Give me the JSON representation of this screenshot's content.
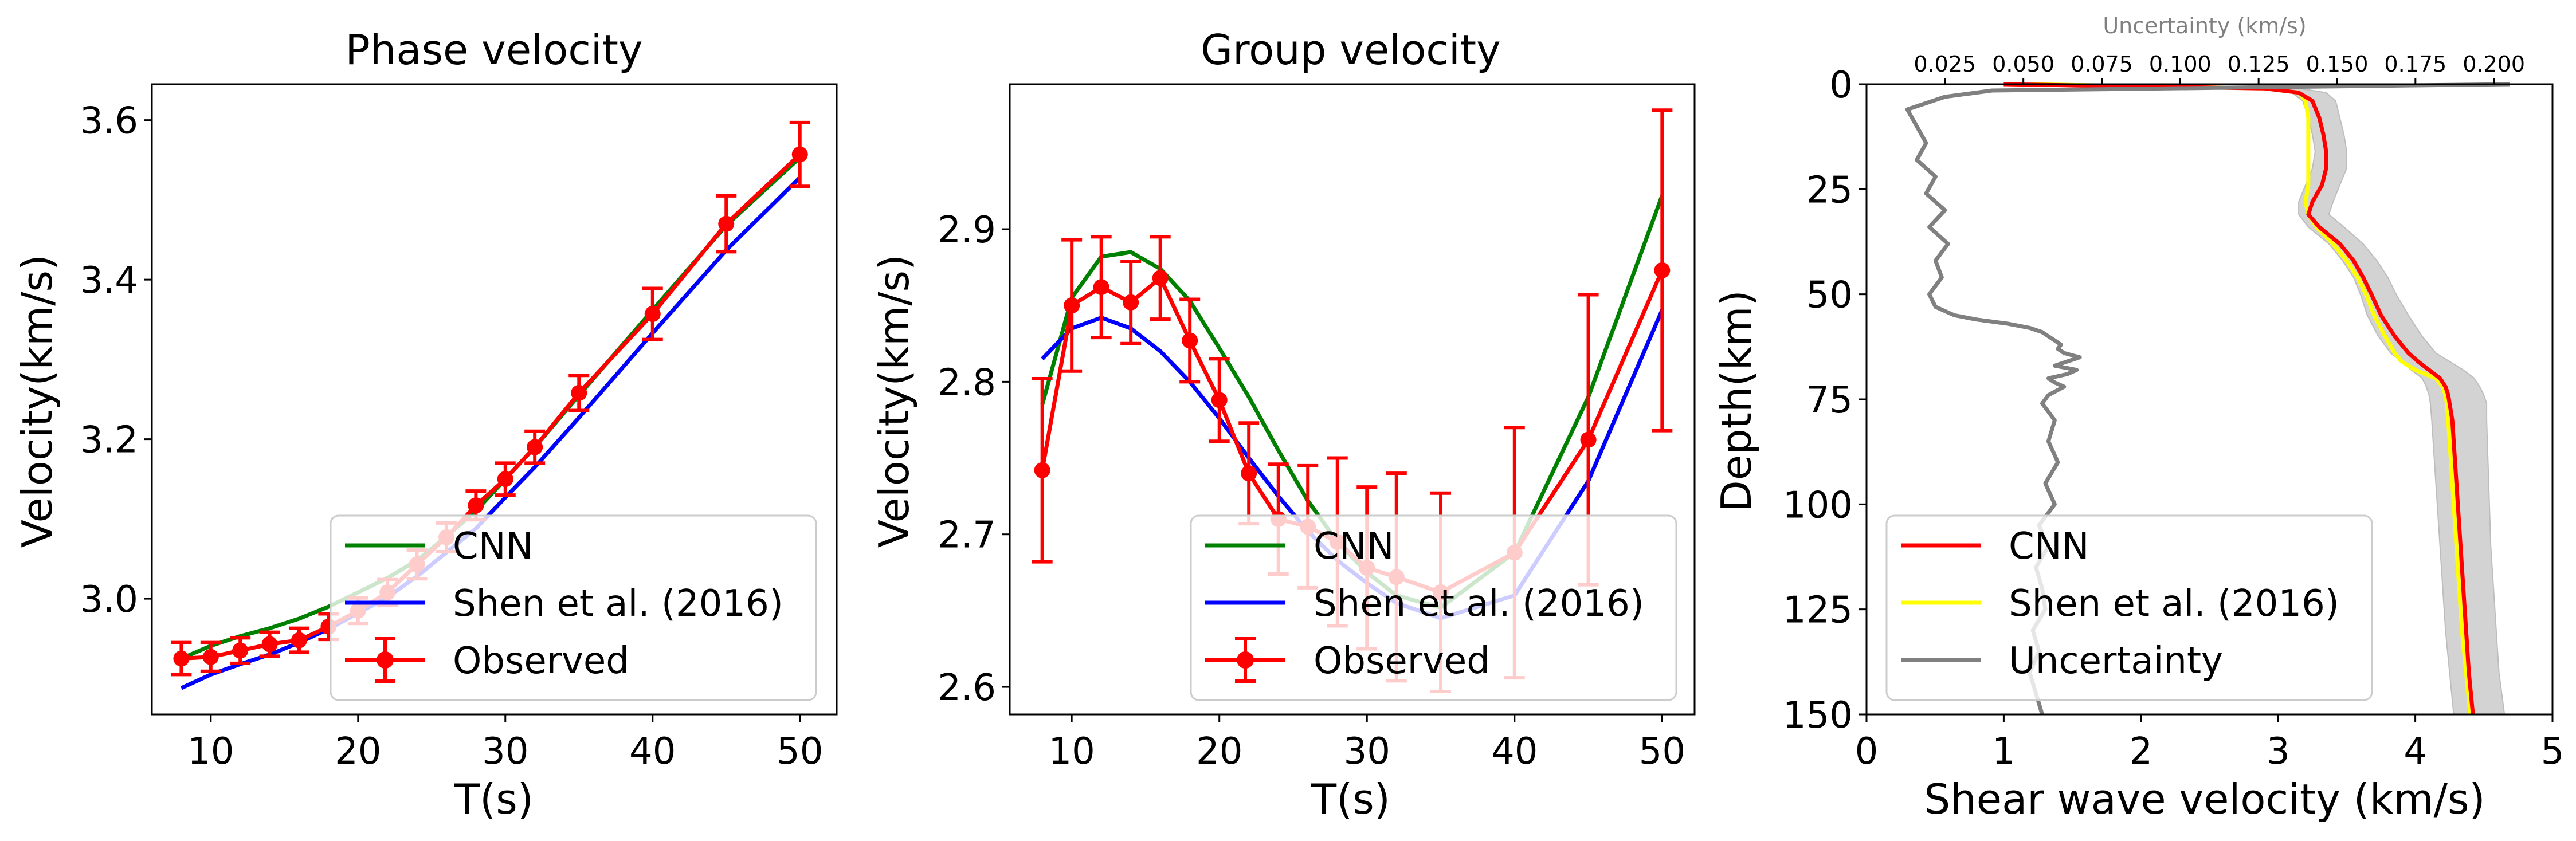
{
  "figure": {
    "colors": {
      "cnn": "#008000",
      "shen": "#0000ff",
      "observed": "#ff0000",
      "shen_profile": "#ffff00",
      "uncertainty": "#808080",
      "band": "#d3d3d3"
    }
  },
  "chart_data": [
    {
      "type": "line",
      "title": "Phase velocity",
      "xlabel": "T(s)",
      "ylabel": "Velocity(km/s)",
      "xlim": [
        6.0,
        52.5
      ],
      "ylim": [
        2.855,
        3.645
      ],
      "xticks": [
        10,
        20,
        30,
        40,
        50
      ],
      "yticks": [
        3.0,
        3.2,
        3.4,
        3.6
      ],
      "ytick_labels": [
        "3.0",
        "3.2",
        "3.4",
        "3.6"
      ],
      "legend_position": "lower-right",
      "legend": [
        "CNN",
        "Shen et al. (2016)",
        "Observed"
      ],
      "x": [
        8,
        10,
        12,
        14,
        16,
        18,
        20,
        22,
        24,
        26,
        28,
        30,
        32,
        35,
        40,
        45,
        50
      ],
      "series": [
        {
          "name": "CNN",
          "values": [
            2.925,
            2.941,
            2.953,
            2.963,
            2.975,
            2.99,
            3.008,
            3.026,
            3.048,
            3.078,
            3.11,
            3.15,
            3.19,
            3.255,
            3.362,
            3.468,
            3.553
          ]
        },
        {
          "name": "Shen et al. (2016)",
          "values": [
            2.888,
            2.905,
            2.918,
            2.93,
            2.945,
            2.962,
            2.982,
            3.002,
            3.028,
            3.058,
            3.088,
            3.127,
            3.165,
            3.227,
            3.333,
            3.437,
            3.528
          ]
        },
        {
          "name": "Observed",
          "values": [
            2.925,
            2.927,
            2.935,
            2.943,
            2.948,
            2.965,
            2.985,
            3.008,
            3.043,
            3.077,
            3.117,
            3.15,
            3.19,
            3.258,
            3.357,
            3.47,
            3.557
          ],
          "errors": [
            0.02,
            0.018,
            0.016,
            0.015,
            0.015,
            0.016,
            0.016,
            0.016,
            0.018,
            0.018,
            0.018,
            0.02,
            0.02,
            0.022,
            0.032,
            0.035,
            0.04
          ]
        }
      ]
    },
    {
      "type": "line",
      "title": "Group velocity",
      "xlabel": "T(s)",
      "ylabel": "Velocity(km/s)",
      "xlim": [
        5.8,
        52.2
      ],
      "ylim": [
        2.582,
        2.995
      ],
      "xticks": [
        10,
        20,
        30,
        40,
        50
      ],
      "yticks": [
        2.6,
        2.7,
        2.8,
        2.9
      ],
      "ytick_labels": [
        "2.6",
        "2.7",
        "2.8",
        "2.9"
      ],
      "legend_position": "lower-right",
      "legend": [
        "CNN",
        "Shen et al. (2016)",
        "Observed"
      ],
      "x": [
        8,
        10,
        12,
        14,
        16,
        18,
        20,
        22,
        24,
        26,
        28,
        30,
        32,
        35,
        40,
        45,
        50
      ],
      "series": [
        {
          "name": "CNN",
          "values": [
            2.785,
            2.855,
            2.882,
            2.885,
            2.874,
            2.853,
            2.822,
            2.79,
            2.755,
            2.722,
            2.695,
            2.675,
            2.66,
            2.652,
            2.688,
            2.79,
            2.922
          ]
        },
        {
          "name": "Shen et al. (2016)",
          "values": [
            2.815,
            2.835,
            2.842,
            2.835,
            2.82,
            2.8,
            2.776,
            2.75,
            2.725,
            2.702,
            2.683,
            2.668,
            2.655,
            2.645,
            2.66,
            2.735,
            2.847
          ]
        },
        {
          "name": "Observed",
          "values": [
            2.742,
            2.85,
            2.862,
            2.852,
            2.868,
            2.827,
            2.788,
            2.74,
            2.71,
            2.705,
            2.695,
            2.678,
            2.672,
            2.662,
            2.688,
            2.762,
            2.873
          ],
          "errors": [
            0.06,
            0.043,
            0.033,
            0.027,
            0.027,
            0.027,
            0.027,
            0.033,
            0.036,
            0.04,
            0.055,
            0.053,
            0.068,
            0.065,
            0.082,
            0.095,
            0.105
          ]
        }
      ]
    },
    {
      "type": "line",
      "xlabel": "Shear wave velocity (km/s)",
      "ylabel": "Depth(km)",
      "top_xlabel": "Uncertainty (km/s)",
      "xlim": [
        0,
        5
      ],
      "ylim": [
        150,
        0
      ],
      "top_xlim": [
        0.0,
        0.2187
      ],
      "xticks": [
        0,
        1,
        2,
        3,
        4,
        5
      ],
      "yticks": [
        0,
        25,
        50,
        75,
        100,
        125,
        150
      ],
      "top_xticks": [
        0.025,
        0.05,
        0.075,
        0.1,
        0.125,
        0.15,
        0.175,
        0.2
      ],
      "top_xtick_labels": [
        "0.025",
        "0.050",
        "0.075",
        "0.100",
        "0.125",
        "0.150",
        "0.175",
        "0.200"
      ],
      "legend_position": "lower-left",
      "legend": [
        "CNN",
        "Shen et al. (2016)",
        "Uncertainty"
      ],
      "depth": [
        0,
        1,
        2,
        4,
        8,
        12,
        16,
        20,
        24,
        28,
        31,
        34,
        38,
        42,
        46,
        50,
        55,
        60,
        64,
        66,
        68,
        70,
        72,
        74,
        76,
        80,
        90,
        100,
        110,
        120,
        130,
        140,
        150
      ],
      "series": [
        {
          "name": "CNN",
          "values": [
            1.0,
            2.9,
            3.15,
            3.25,
            3.3,
            3.33,
            3.35,
            3.35,
            3.32,
            3.25,
            3.22,
            3.3,
            3.45,
            3.55,
            3.62,
            3.68,
            3.75,
            3.85,
            3.95,
            4.02,
            4.1,
            4.18,
            4.22,
            4.24,
            4.25,
            4.27,
            4.29,
            4.31,
            4.33,
            4.35,
            4.37,
            4.39,
            4.42
          ]
        },
        {
          "name": "Shen et al. (2016)",
          "values": [
            1.2,
            2.9,
            3.15,
            3.2,
            3.22,
            3.22,
            3.22,
            3.22,
            3.22,
            3.2,
            3.22,
            3.28,
            3.4,
            3.5,
            3.58,
            3.64,
            3.7,
            3.78,
            3.85,
            3.9,
            4.0,
            4.15,
            4.2,
            4.22,
            4.23,
            4.24,
            4.26,
            4.28,
            4.3,
            4.32,
            4.34,
            4.37,
            4.4
          ]
        },
        {
          "name": "Uncertainty band",
          "lower": [
            1.2,
            2.95,
            3.1,
            3.18,
            3.22,
            3.25,
            3.27,
            3.25,
            3.2,
            3.15,
            3.15,
            3.22,
            3.37,
            3.47,
            3.55,
            3.6,
            3.65,
            3.73,
            3.82,
            3.9,
            3.97,
            4.05,
            4.08,
            4.1,
            4.11,
            4.12,
            4.14,
            4.16,
            4.18,
            4.2,
            4.22,
            4.25,
            4.28
          ],
          "upper": [
            1.5,
            3.15,
            3.35,
            3.42,
            3.45,
            3.48,
            3.5,
            3.5,
            3.45,
            3.4,
            3.37,
            3.48,
            3.62,
            3.72,
            3.8,
            3.86,
            3.95,
            4.05,
            4.15,
            4.25,
            4.35,
            4.43,
            4.47,
            4.5,
            4.52,
            4.52,
            4.53,
            4.54,
            4.55,
            4.57,
            4.59,
            4.61,
            4.65
          ]
        },
        {
          "name": "Uncertainty",
          "depth": [
            0,
            0.5,
            1.5,
            3,
            6,
            10,
            14,
            18,
            22,
            26,
            30,
            34,
            38,
            42,
            46,
            50,
            53,
            55,
            56,
            57,
            58,
            59,
            60,
            61,
            62,
            63,
            64,
            65,
            66,
            67,
            68,
            69,
            70,
            71,
            72,
            74,
            76,
            80,
            85,
            90,
            95,
            100,
            105,
            110,
            115,
            120,
            125,
            130,
            135,
            140,
            145,
            150
          ],
          "values": [
            0.205,
            0.15,
            0.04,
            0.025,
            0.013,
            0.016,
            0.019,
            0.016,
            0.022,
            0.019,
            0.025,
            0.02,
            0.026,
            0.022,
            0.024,
            0.02,
            0.022,
            0.028,
            0.035,
            0.045,
            0.052,
            0.056,
            0.058,
            0.06,
            0.062,
            0.061,
            0.063,
            0.068,
            0.064,
            0.06,
            0.067,
            0.064,
            0.058,
            0.06,
            0.063,
            0.058,
            0.056,
            0.06,
            0.058,
            0.061,
            0.057,
            0.06,
            0.055,
            0.058,
            0.054,
            0.056,
            0.057,
            0.053,
            0.055,
            0.052,
            0.054,
            0.056
          ]
        }
      ]
    }
  ]
}
